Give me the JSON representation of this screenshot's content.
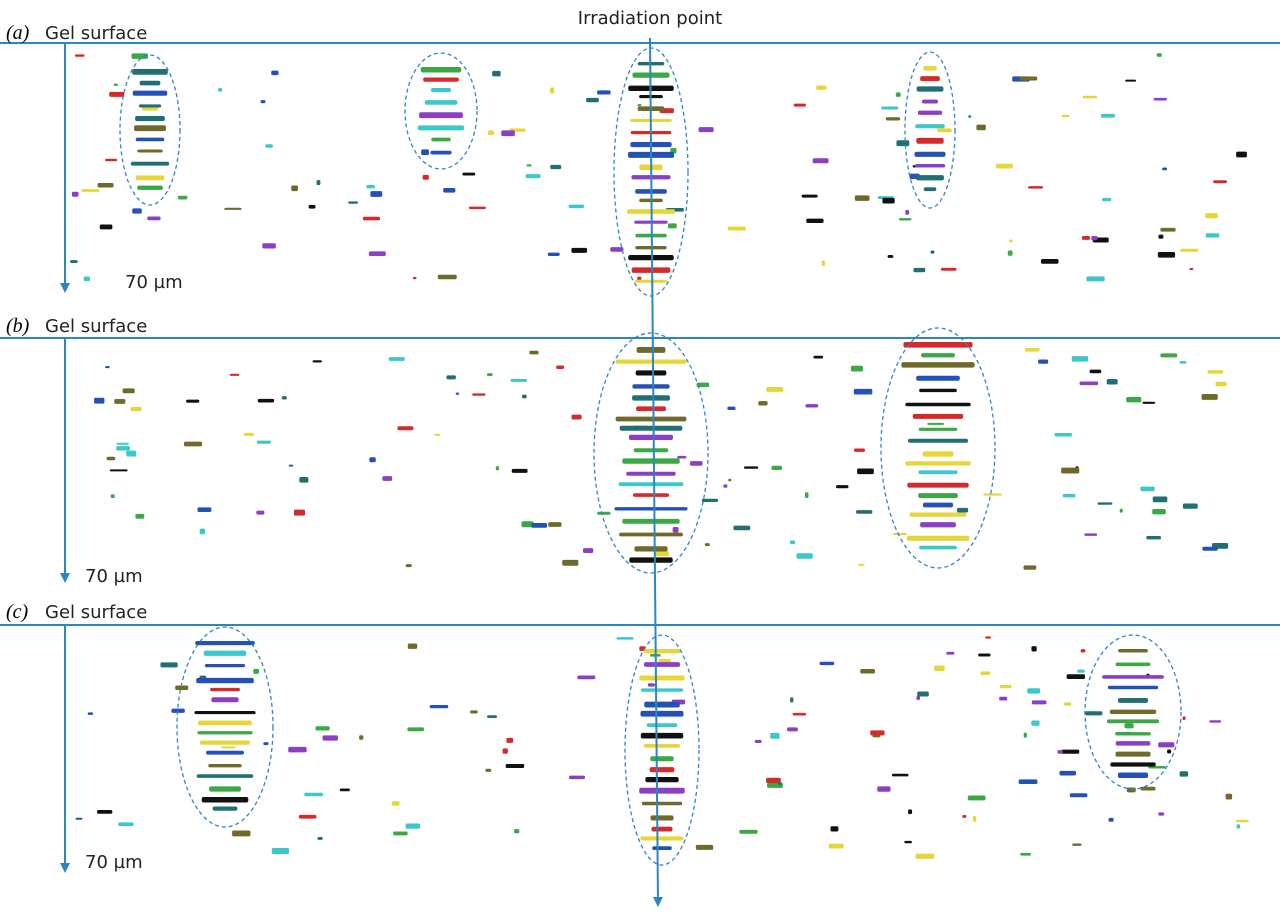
{
  "title": "Irradiation point",
  "panels": [
    {
      "label": "(a)",
      "surface": "Gel surface",
      "depth": "70 µm"
    },
    {
      "label": "(b)",
      "surface": "Gel surface",
      "depth": "70 µm"
    },
    {
      "label": "(c)",
      "surface": "Gel surface",
      "depth": "70 µm"
    }
  ]
}
